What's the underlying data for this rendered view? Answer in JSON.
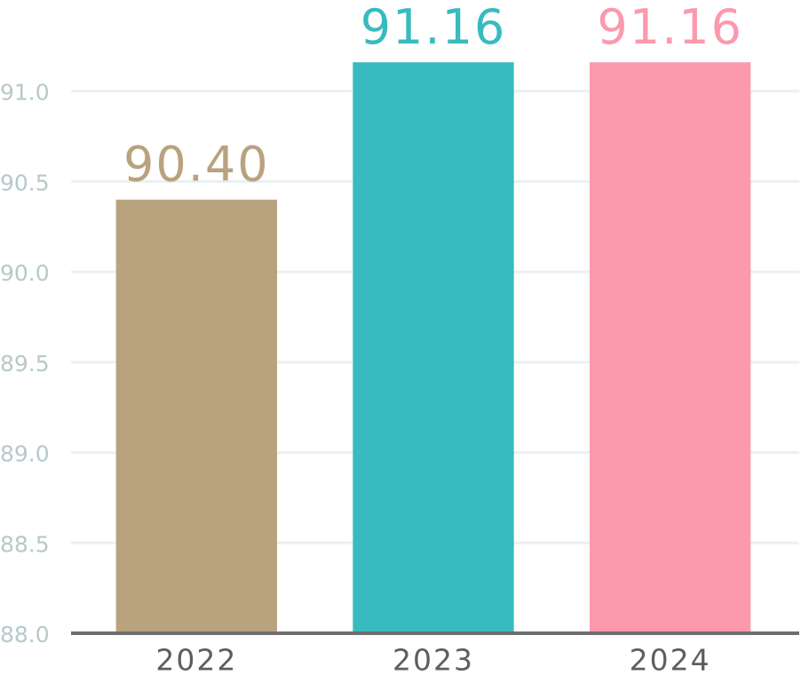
{
  "chart_data": {
    "type": "bar",
    "categories": [
      "2022",
      "2023",
      "2024"
    ],
    "values": [
      90.4,
      91.16,
      91.16
    ],
    "value_labels": [
      "90.40",
      "91.16",
      "91.16"
    ],
    "colors": [
      "#b9a27e",
      "#38bbbf",
      "#fc99ac"
    ],
    "ylim": [
      88,
      91.5
    ],
    "yticks": [
      {
        "value": 88,
        "label": "88.0"
      },
      88.5,
      {
        "value": 89,
        "label": "89.0"
      },
      89.5,
      {
        "value": 90,
        "label": "90.0"
      },
      90.5,
      {
        "value": 91,
        "label": "91.0"
      }
    ],
    "grid": true
  }
}
